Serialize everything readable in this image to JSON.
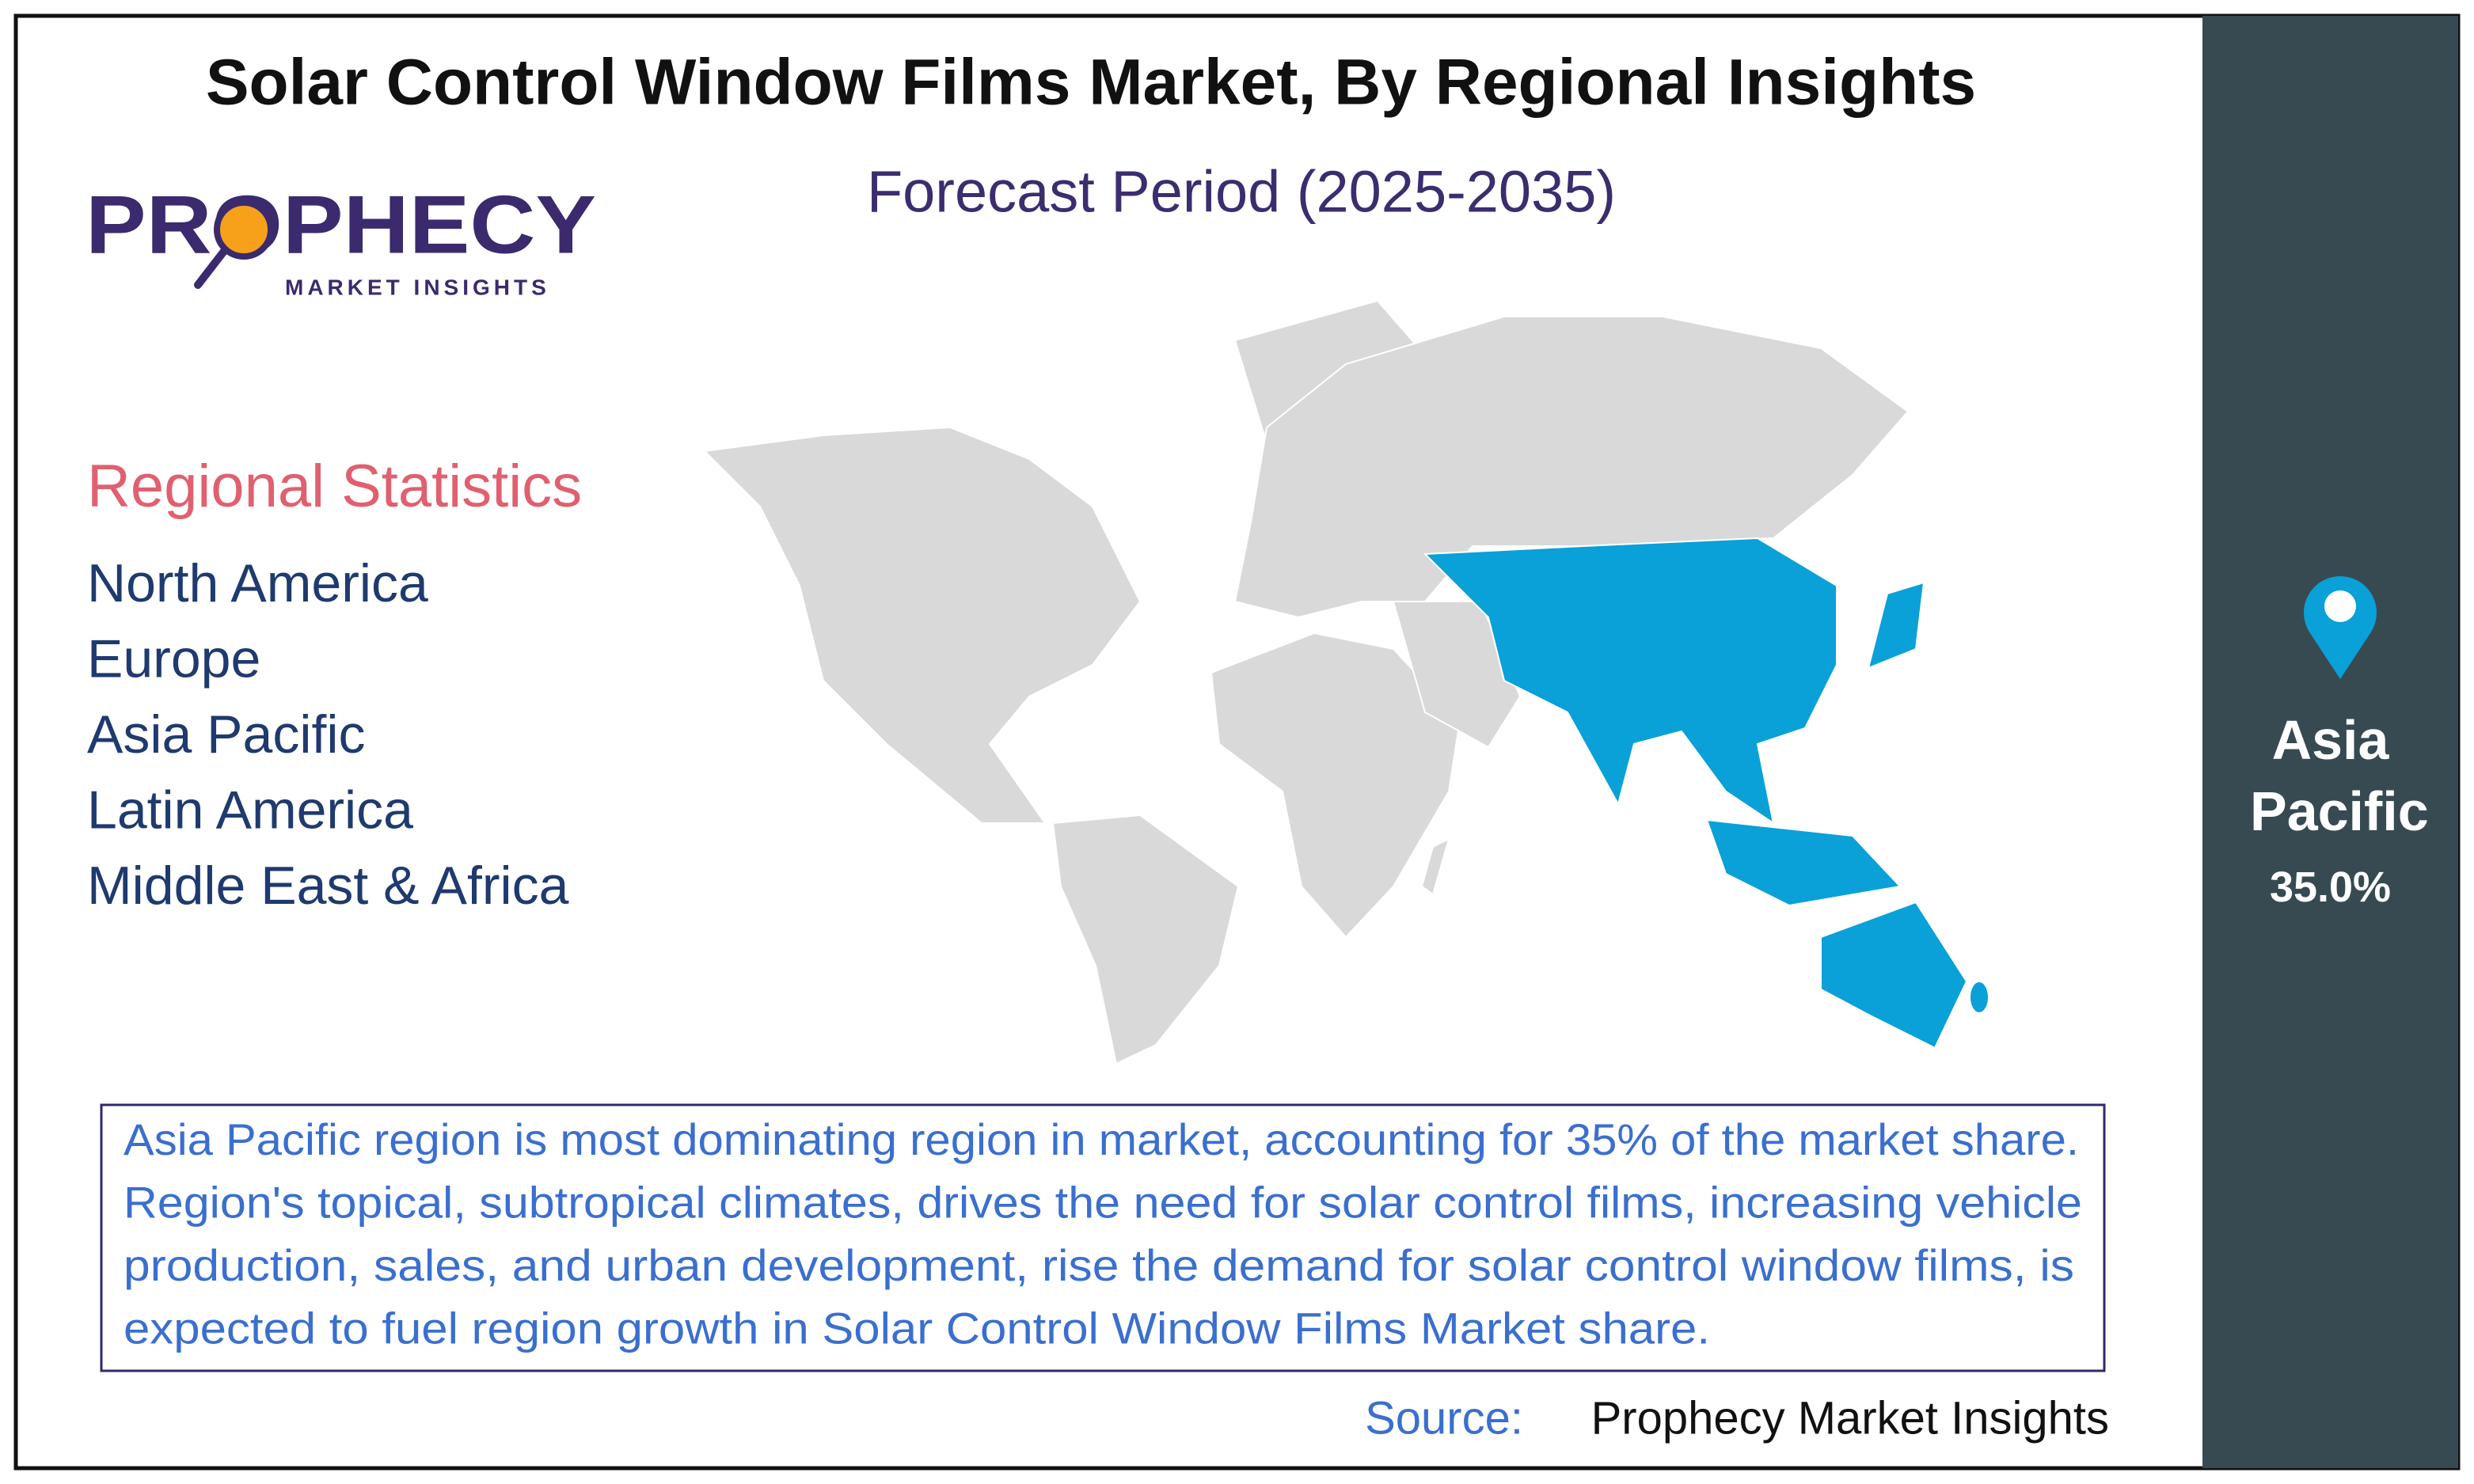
{
  "header": {
    "title": "Solar Control Window Films Market, By Regional Insights",
    "subtitle": "Forecast Period (2025-2035)"
  },
  "logo": {
    "name": "PROPHECY",
    "tagline": "MARKET INSIGHTS"
  },
  "regional_statistics": {
    "heading": "Regional Statistics",
    "regions": [
      "North America",
      "Europe",
      "Asia Pacific",
      "Latin America",
      "Middle East & Africa"
    ]
  },
  "description": {
    "lines": [
      "Asia Pacific region is most dominating region in market, accounting for 35% of the market share.",
      "Region's topical, subtropical climates, drives the need for solar control films, increasing vehicle",
      "production, sales, and urban development, rise the demand for solar control window films, is",
      "expected to fuel region growth in Solar Control Window Films Market share."
    ]
  },
  "source": {
    "label": "Source:",
    "text": "Prophecy Market Insights"
  },
  "highlight": {
    "region": "Asia Pacific",
    "share": "35.0%"
  }
}
